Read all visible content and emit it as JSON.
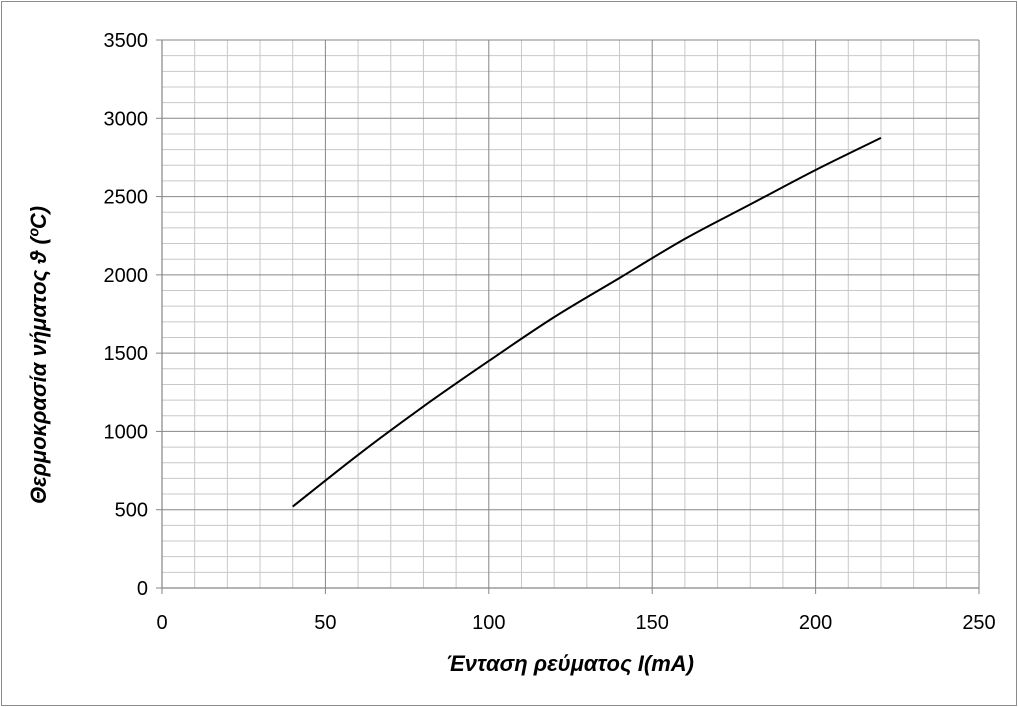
{
  "chart_data": {
    "type": "line",
    "title": "",
    "xlabel": "Ένταση ρεύματος  I(mA)",
    "ylabel": "Θερμοκρασία νήματος  ϑ (ºC)",
    "xlim": [
      0,
      250
    ],
    "ylim": [
      0,
      3500
    ],
    "x_ticks": [
      0,
      50,
      100,
      150,
      200,
      250
    ],
    "y_ticks": [
      0,
      500,
      1000,
      1500,
      2000,
      2500,
      3000,
      3500
    ],
    "x_tick_labels": [
      "0",
      "50",
      "100",
      "150",
      "200",
      "250"
    ],
    "y_tick_labels": [
      "0",
      "500",
      "1000",
      "1500",
      "2000",
      "2500",
      "3000",
      "3500"
    ],
    "grid": true,
    "legend": "none",
    "line_color": "#000000",
    "series": [
      {
        "x": [
          40,
          60,
          80,
          100,
          120,
          140,
          160,
          180,
          200,
          220
        ],
        "values": [
          520,
          850,
          1160,
          1450,
          1730,
          1980,
          2230,
          2450,
          2670,
          2875
        ]
      }
    ]
  }
}
